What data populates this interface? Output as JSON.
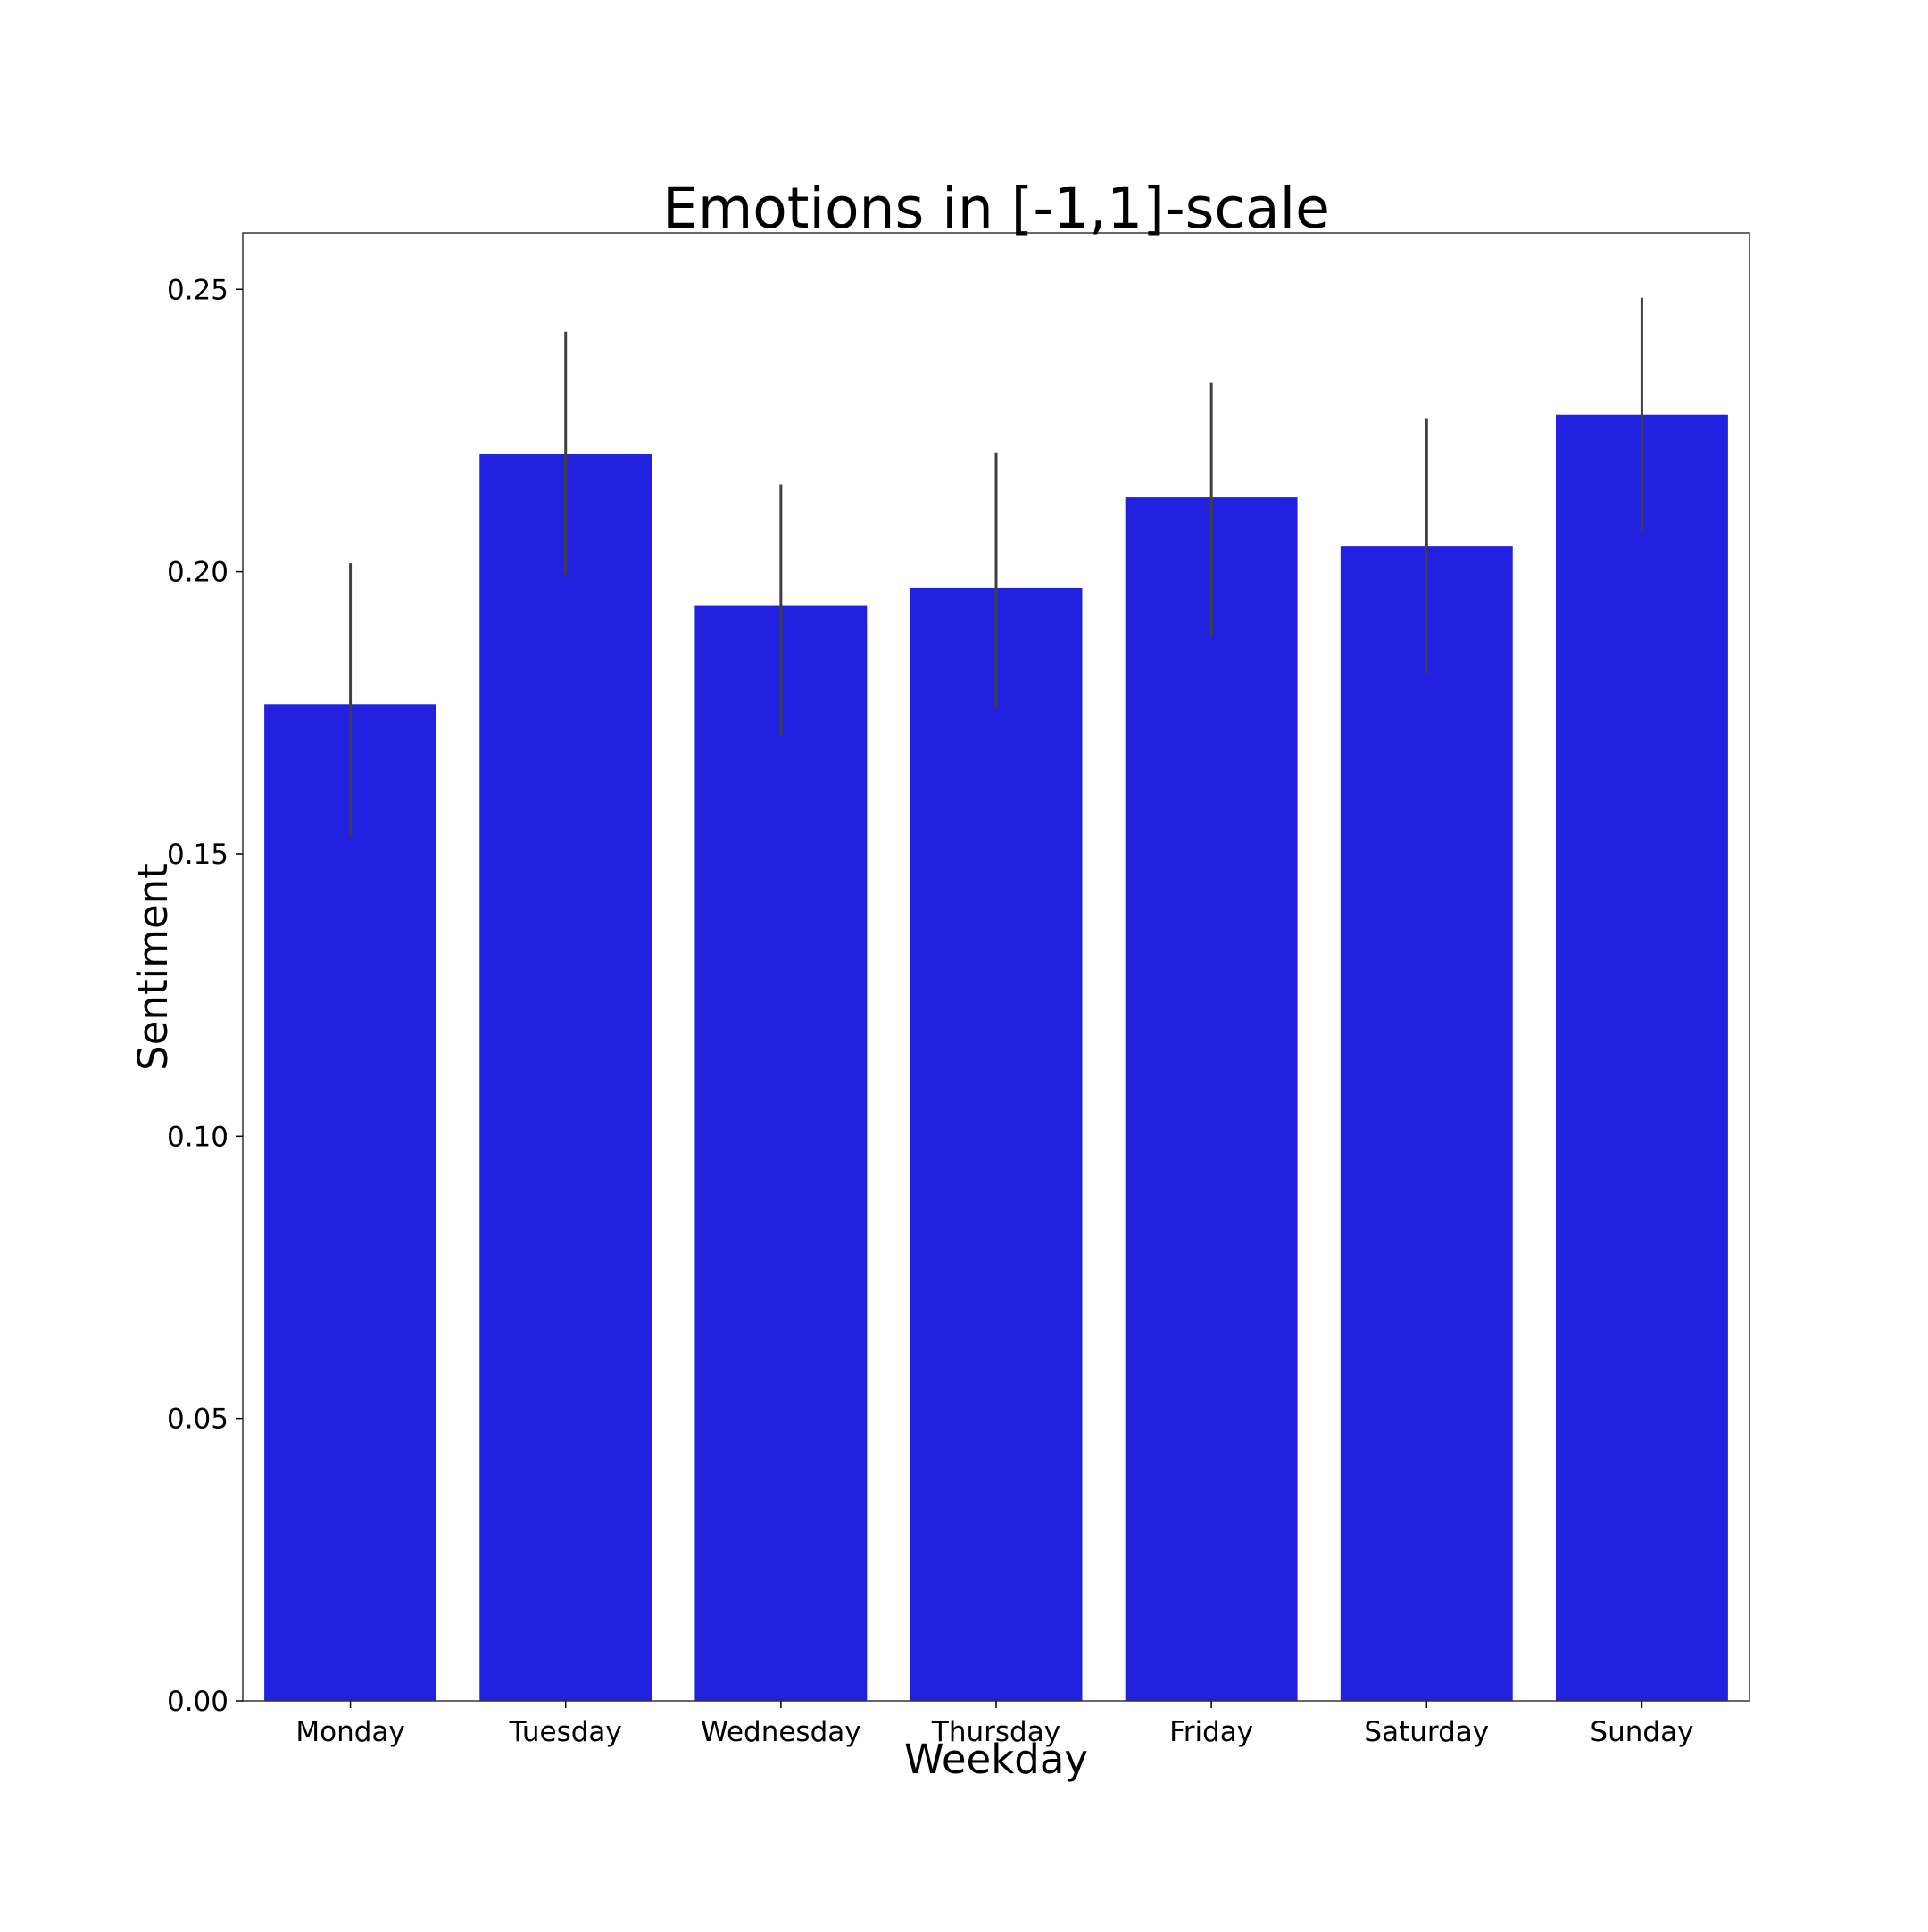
{
  "chart_data": {
    "type": "bar",
    "title": "Emotions in [-1,1]-scale",
    "xlabel": "Weekday",
    "ylabel": "Sentiment",
    "categories": [
      "Monday",
      "Tuesday",
      "Wednesday",
      "Thursday",
      "Friday",
      "Saturday",
      "Sunday"
    ],
    "values": [
      0.1765,
      0.2208,
      0.194,
      0.1971,
      0.2132,
      0.2045,
      0.2278
    ],
    "error_low": [
      0.153,
      0.1995,
      0.171,
      0.1755,
      0.1885,
      0.182,
      0.207
    ],
    "error_high": [
      0.2015,
      0.2425,
      0.2155,
      0.221,
      0.2335,
      0.2272,
      0.2485
    ],
    "ylim": [
      0,
      0.26
    ],
    "yticks": [
      0.0,
      0.05,
      0.1,
      0.15,
      0.2,
      0.25
    ],
    "ytick_labels": [
      "0.00",
      "0.05",
      "0.10",
      "0.15",
      "0.20",
      "0.25"
    ],
    "grid": false,
    "bar_color": "#2121df",
    "error_color": "#3f3f3f"
  }
}
